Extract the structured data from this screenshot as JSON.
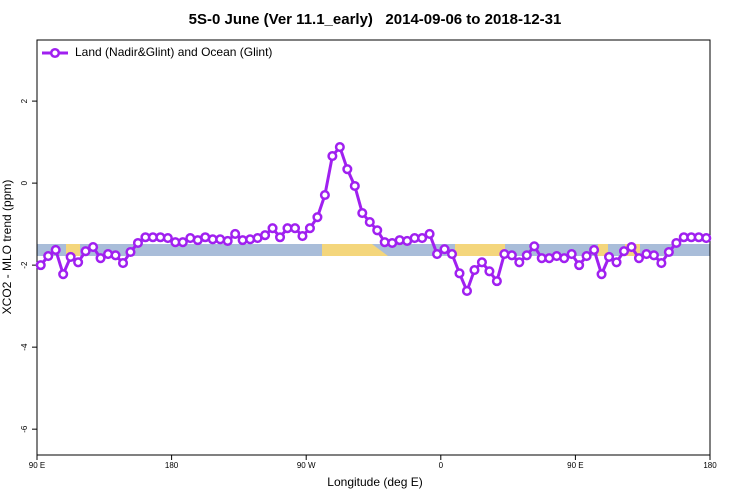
{
  "chart_data": {
    "type": "line",
    "title": "5S-0 June (Ver 11.1_early)   2014-09-06 to 2018-12-31",
    "x_label": "Longitude (deg E)",
    "y_label": "XCO2 - MLO trend (ppm)",
    "x": [
      92.5,
      97.5,
      102.5,
      107.5,
      112.5,
      117.5,
      122.5,
      127.5,
      132.5,
      137.5,
      142.5,
      147.5,
      152.5,
      157.5,
      162.5,
      167.5,
      172.5,
      177.5,
      182.5,
      187.5,
      192.5,
      197.5,
      202.5,
      207.5,
      212.5,
      217.5,
      222.5,
      227.5,
      232.5,
      237.5,
      242.5,
      247.5,
      252.5,
      257.5,
      262.5,
      267.5,
      272.5,
      277.5,
      282.5,
      287.5,
      292.5,
      297.5,
      302.5,
      307.5,
      312.5,
      317.5,
      322.5,
      327.5,
      332.5,
      337.5,
      342.5,
      347.5,
      352.5,
      357.5,
      362.5,
      367.5,
      372.5,
      377.5,
      382.5,
      387.5,
      392.5,
      397.5,
      402.5,
      407.5,
      412.5,
      417.5,
      422.5,
      427.5,
      432.5,
      437.5,
      442.5,
      447.5,
      452.5,
      457.5,
      462.5,
      467.5,
      472.5,
      477.5,
      482.5,
      487.5,
      492.5,
      497.5,
      502.5,
      507.5,
      512.5,
      517.5,
      522.5,
      527.5,
      532.5,
      537.5
    ],
    "series": [
      {
        "name": "Land (Nadir&Glint) and Ocean (Glint)",
        "color": "#a020f0",
        "values": [
          -2.0,
          -1.78,
          -1.63,
          -2.22,
          -1.8,
          -1.93,
          -1.66,
          -1.56,
          -1.83,
          -1.73,
          -1.76,
          -1.95,
          -1.68,
          -1.46,
          -1.32,
          -1.32,
          -1.32,
          -1.34,
          -1.44,
          -1.44,
          -1.34,
          -1.39,
          -1.32,
          -1.37,
          -1.37,
          -1.41,
          -1.24,
          -1.39,
          -1.37,
          -1.34,
          -1.27,
          -1.1,
          -1.32,
          -1.1,
          -1.1,
          -1.29,
          -1.1,
          -0.83,
          -0.29,
          0.66,
          0.88,
          0.34,
          -0.07,
          -0.73,
          -0.95,
          -1.15,
          -1.44,
          -1.46,
          -1.39,
          -1.41,
          -1.34,
          -1.34,
          -1.24,
          -1.73,
          -1.61,
          -1.73,
          -2.2,
          -2.63,
          -2.12,
          -1.93,
          -2.15,
          -2.39,
          -1.73,
          -1.76,
          -1.93,
          -1.76,
          -1.54,
          -1.83,
          -1.83,
          -1.78,
          -1.83,
          -1.73,
          -2.0,
          -1.78,
          -1.63,
          -2.22,
          -1.8,
          -1.93,
          -1.66,
          -1.56,
          -1.83,
          -1.73,
          -1.76,
          -1.95,
          -1.68,
          -1.46,
          -1.32,
          -1.32,
          -1.32,
          -1.34
        ]
      }
    ],
    "xlim": [
      90,
      540
    ],
    "xticks": [
      {
        "value": 90,
        "label": "90 E"
      },
      180,
      {
        "value": 270,
        "label": "90 W"
      },
      {
        "value": 360,
        "label": "0"
      },
      {
        "value": 450,
        "label": "90 E"
      },
      {
        "value": 540,
        "label": "180"
      }
    ],
    "ylim": [
      -6.63,
      3.49
    ],
    "yticks": [
      -6,
      -4,
      -2,
      0,
      2
    ],
    "legend": "top-left"
  }
}
